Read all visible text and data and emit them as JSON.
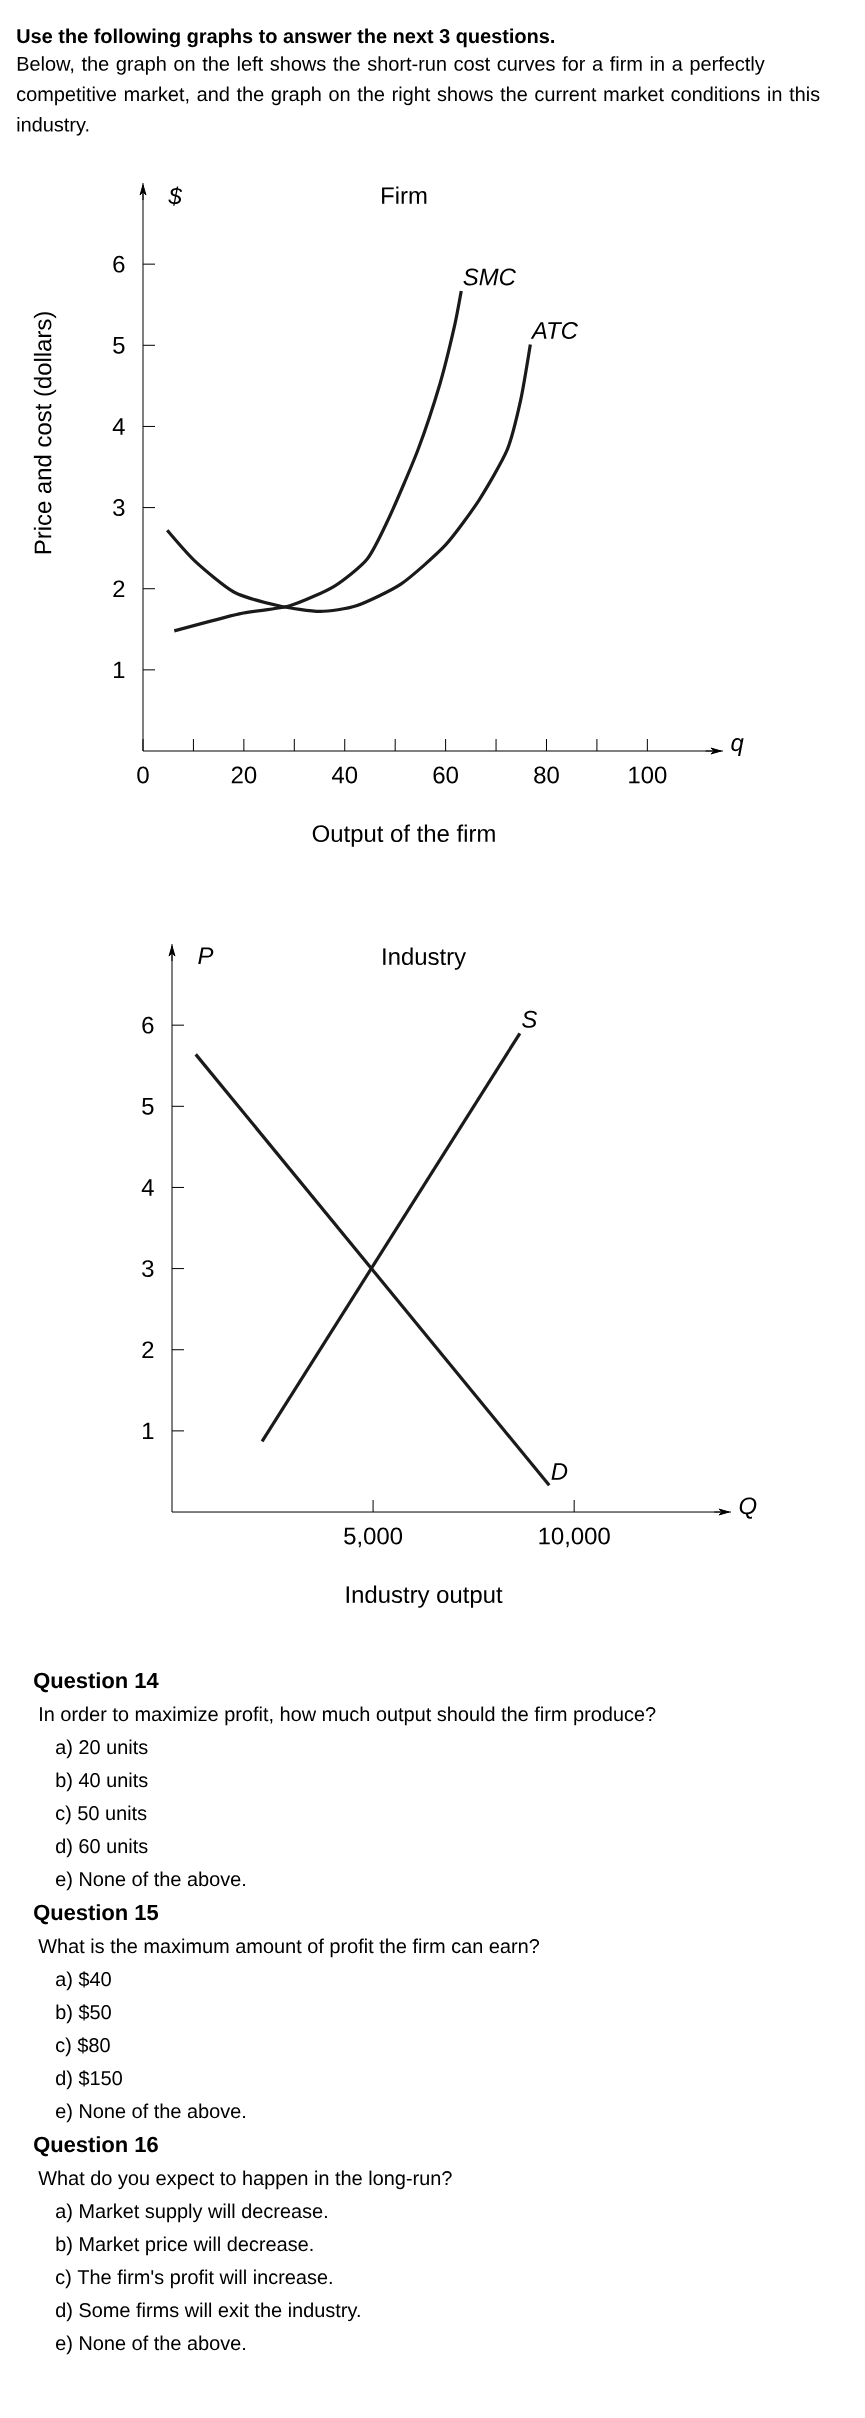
{
  "chart_data": [
    {
      "type": "other",
      "title": "Use the following graphs to answer the next 3 questions.",
      "annotations": [
        "Below, the graph on the left shows the short-run cost curves for a firm in a perfectly competitive market, and the graph on the right shows the current market conditions in this industry."
      ]
    },
    {
      "type": "line",
      "title": "Firm",
      "xlabel": "Output of the firm",
      "ylabel": "$",
      "annotations": [
        "q",
        "Price and cost (dollars)"
      ],
      "xlim": [
        0,
        115
      ],
      "ylim": [
        0,
        7
      ],
      "xticks": [
        0,
        {
          "value": 10,
          "label": null
        },
        20,
        {
          "value": 30,
          "label": null
        },
        40,
        {
          "value": 50,
          "label": null
        },
        60,
        {
          "value": 70,
          "label": null
        },
        80,
        {
          "value": 90,
          "label": null
        },
        100
      ],
      "yticks": [
        1,
        2,
        3,
        4,
        5,
        6
      ],
      "series": [
        {
          "name": "SMC",
          "color": "#1a1a1a",
          "x": [
            6.2,
            19.1,
            29.1,
            37.9,
            44.5,
            48.9,
            54.5,
            58.9,
            61.7,
            63.1
          ],
          "values": [
            1.48,
            1.69,
            1.79,
            2.03,
            2.37,
            2.89,
            3.71,
            4.53,
            5.22,
            5.67
          ]
        },
        {
          "name": "ATC",
          "color": "#1a1a1a",
          "x": [
            4.8,
            10.3,
            18,
            26.9,
            35.1,
            42.3,
            51.2,
            60,
            66.6,
            72.2,
            74.9,
            76.8
          ],
          "values": [
            2.72,
            2.34,
            1.96,
            1.79,
            1.72,
            1.79,
            2.06,
            2.54,
            3.09,
            3.71,
            4.33,
            5.01
          ]
        }
      ]
    },
    {
      "type": "line",
      "title": "Industry",
      "xlabel": "Industry output",
      "ylabel": "P",
      "annotations": [
        "Q"
      ],
      "xlim": [
        0,
        13900
      ],
      "ylim": [
        0,
        7
      ],
      "xticks": [
        {
          "value": 5000,
          "label": "5,000"
        },
        {
          "value": 10000,
          "label": "10,000"
        }
      ],
      "yticks": [
        1,
        2,
        3,
        4,
        5,
        6
      ],
      "series": [
        {
          "name": "S",
          "color": "#1a1a1a",
          "x": [
            2240,
            8650
          ],
          "values": [
            0.87,
            5.9
          ]
        },
        {
          "name": "D",
          "color": "#1a1a1a",
          "x": [
            590,
            9380
          ],
          "values": [
            5.64,
            0.33
          ]
        }
      ]
    },
    {
      "type": "other",
      "title": "Question 14",
      "annotations": [
        "In order to maximize profit, how much output should the firm produce?",
        "a) 20 units",
        "b) 40 units",
        "c) 50 units",
        "d) 60 units",
        "e) None of the above."
      ]
    },
    {
      "type": "other",
      "title": "Question 15",
      "annotations": [
        "What is the maximum amount of profit the firm can earn?",
        "a) $40",
        "b) $50",
        "c) $80",
        "d) $150",
        "e) None of the above."
      ]
    },
    {
      "type": "other",
      "title": "Question 16",
      "annotations": [
        "What do you expect to happen in the long-run?",
        "a) Market supply will decrease.",
        "b) Market price will decrease.",
        "c) The firm's profit will increase.",
        "d) Some firms will exit the industry.",
        "e) None of the above."
      ]
    }
  ]
}
